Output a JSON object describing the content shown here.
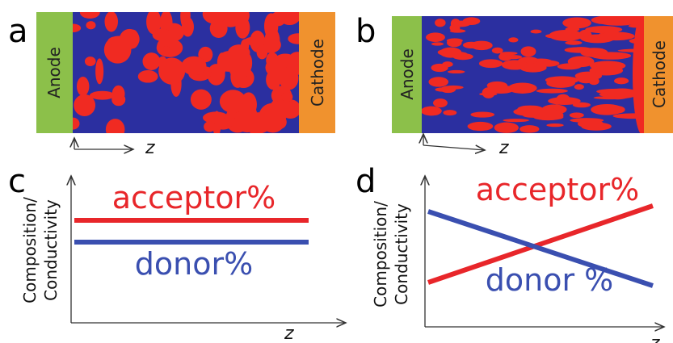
{
  "panels": [
    {
      "label": "a",
      "anode": "Anode",
      "cathode": "Cathode",
      "axis": "z"
    },
    {
      "label": "b",
      "anode": "Anode",
      "cathode": "Cathode",
      "axis": "z"
    },
    {
      "label": "c",
      "ylabel": [
        "Composition/",
        "Conductivity"
      ],
      "acceptor": "acceptor%",
      "donor": "donor%",
      "axis": "z"
    },
    {
      "label": "d",
      "ylabel": [
        "Composition/",
        "Conductivity"
      ],
      "acceptor": "acceptor%",
      "donor": "donor %",
      "axis": "z"
    }
  ]
}
